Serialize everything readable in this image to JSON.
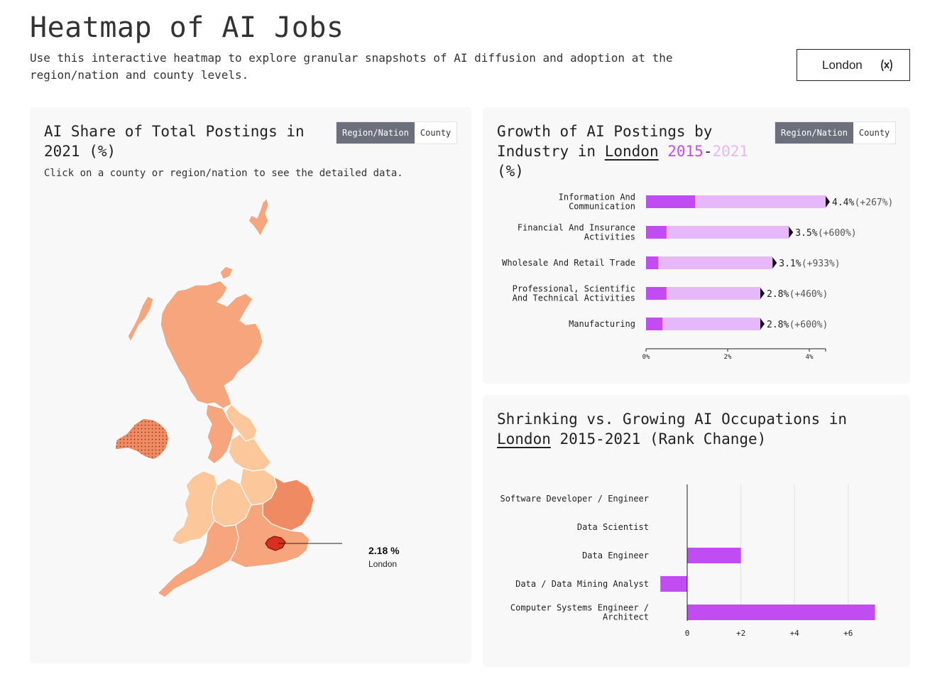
{
  "header": {
    "title": "Heatmap of AI Jobs",
    "subtitle": "Use this interactive heatmap to explore granular snapshots of AI diffusion and adoption at the region/nation and county levels.",
    "selected_location": "London",
    "clear_icon": "close-icon"
  },
  "map_card": {
    "title": "AI Share of Total Postings in 2021 (%)",
    "toggle": {
      "active": "Region/Nation",
      "inactive": "County"
    },
    "hint": "Click on a county or region/nation to see the detailed data.",
    "callout": {
      "value": "2.18 %",
      "name": "London"
    },
    "colors": {
      "low": "#fdc79c",
      "mid": "#f7a57c",
      "high": "#ef8a62",
      "selected": "#d7301f"
    }
  },
  "industry_card": {
    "title_prefix": "Growth of AI Postings by Industry in",
    "location": "London",
    "year_start": "2015",
    "dash": "-",
    "year_end": "2021",
    "unit": "(%)",
    "toggle": {
      "active": "Region/Nation",
      "inactive": "County"
    }
  },
  "occupation_card": {
    "title_prefix": "Shrinking vs. Growing AI Occupations in",
    "location": "London",
    "title_suffix": "2015-2021 (Rank Change)"
  },
  "chart_data": [
    {
      "type": "bar",
      "orientation": "horizontal",
      "title": "Growth of AI Postings by Industry in London 2015-2021 (%)",
      "categories": [
        [
          "Information And",
          "Communication"
        ],
        [
          "Financial And Insurance",
          "Activities"
        ],
        [
          "Wholesale And Retail Trade"
        ],
        [
          "Professional, Scientific",
          "And Technical Activities"
        ],
        [
          "Manufacturing"
        ]
      ],
      "series": [
        {
          "name": "2015",
          "values": [
            1.2,
            0.5,
            0.3,
            0.5,
            0.4
          ],
          "color": "#c04cf2"
        },
        {
          "name": "2021",
          "values": [
            4.4,
            3.5,
            3.1,
            2.8,
            2.8
          ],
          "color": "#e6b8fa"
        }
      ],
      "value_labels": [
        "4.4%",
        "3.5%",
        "3.1%",
        "2.8%",
        "2.8%"
      ],
      "change_labels": [
        "(+267%)",
        "(+600%)",
        "(+933%)",
        "(+460%)",
        "(+600%)"
      ],
      "xticks": [
        0,
        2,
        4
      ],
      "xtick_labels": [
        "0%",
        "2%",
        "4%"
      ],
      "xlim": [
        0,
        4.4
      ]
    },
    {
      "type": "bar",
      "orientation": "horizontal",
      "title": "Shrinking vs. Growing AI Occupations in London 2015-2021 (Rank Change)",
      "categories": [
        [
          "Software Developer / Engineer"
        ],
        [
          "Data Scientist"
        ],
        [
          "Data Engineer"
        ],
        [
          "Data / Data Mining Analyst"
        ],
        [
          "Computer Systems Engineer /",
          "Architect"
        ]
      ],
      "values": [
        0,
        0,
        2,
        -1,
        7
      ],
      "color": "#c04cf2",
      "xticks": [
        0,
        2,
        4,
        6
      ],
      "xtick_labels": [
        "0",
        "+2",
        "+4",
        "+6"
      ],
      "xlim": [
        -1,
        7
      ],
      "grid": true
    }
  ]
}
